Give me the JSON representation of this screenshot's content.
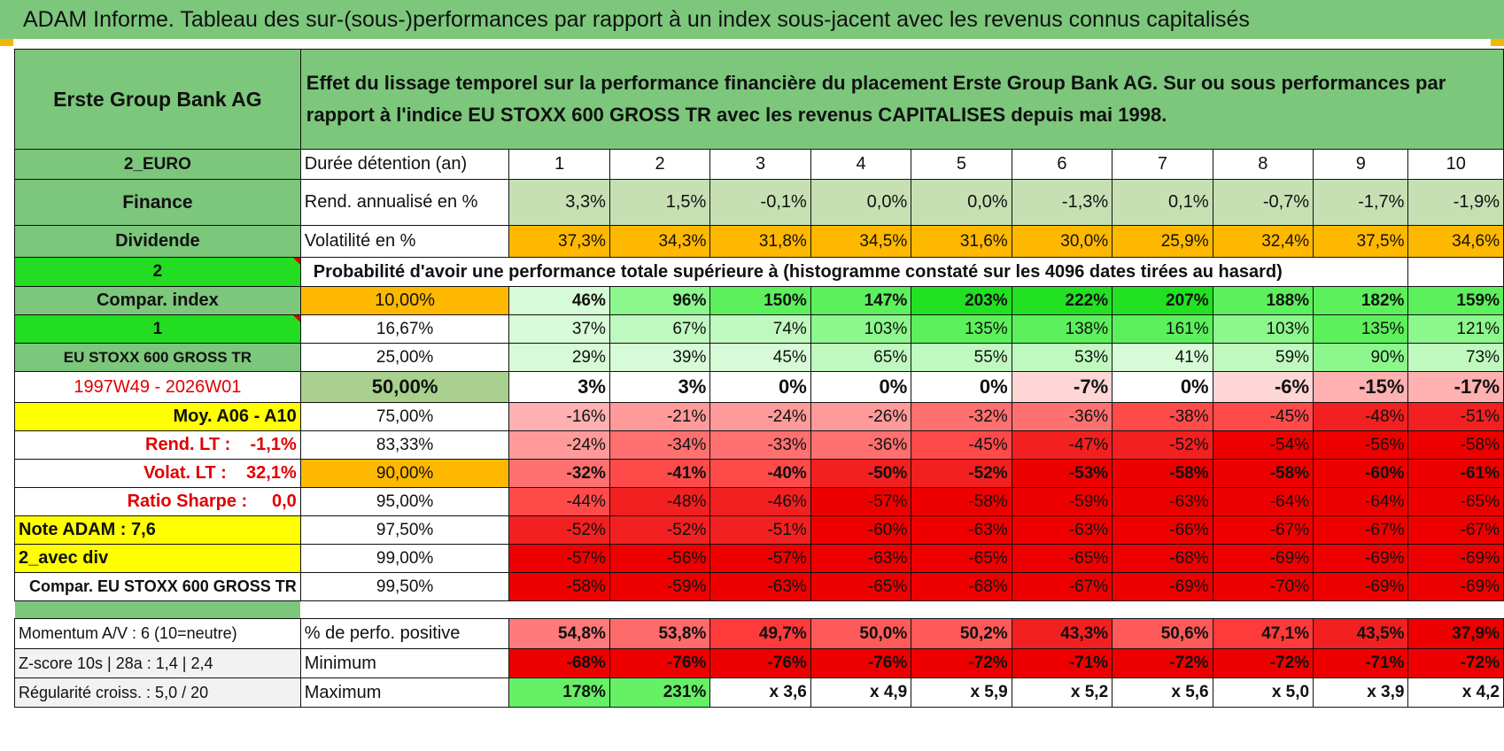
{
  "banner": "ADAM Informe. Tableau des sur-(sous-)performances par rapport à un index sous-jacent avec les revenus connus capitalisés",
  "header": {
    "company": "Erste Group Bank AG",
    "description": "Effet du lissage temporel sur la performance financière du placement Erste Group Bank AG. Sur ou sous performances par rapport à l'indice EU STOXX 600 GROSS TR avec les revenus CAPITALISES depuis mai 1998."
  },
  "side": {
    "currency": "2_EURO",
    "sector": "Finance",
    "dividend": "Dividende",
    "code2": "2",
    "compar_index": "Compar. index",
    "code1": "1",
    "index_name": "EU STOXX 600 GROSS TR",
    "period": "1997W49 - 2026W01",
    "moy": "Moy. A06 - A10",
    "rend_lt": "Rend. LT :    -1,1%",
    "volat_lt": "Volat. LT :    32,1%",
    "sharpe": "Ratio Sharpe :     0,0",
    "note": "Note ADAM : 7,6",
    "avec_div": "2_avec div",
    "compar_idx2": "Compar. EU STOXX 600 GROSS TR",
    "momentum": "Momentum A/V : 6 (10=neutre)",
    "zscore": "Z-score 10s | 28a : 1,4 | 2,4",
    "regularite": "Régularité croiss. : 5,0 / 20"
  },
  "labels": {
    "duree": "Durée détention (an)",
    "rend": "Rend. annualisé en %",
    "volat": "Volatilité en %",
    "proba": "Probabilité d'avoir une performance totale supérieure à (histogramme constaté sur les 4096 dates tirées au hasard)",
    "perfo_pos": "% de perfo. positive",
    "minimum": "Minimum",
    "maximum": "Maximum"
  },
  "years": [
    "1",
    "2",
    "3",
    "4",
    "5",
    "6",
    "7",
    "8",
    "9",
    "10"
  ],
  "rend": [
    "3,3%",
    "1,5%",
    "-0,1%",
    "0,0%",
    "0,0%",
    "-1,3%",
    "0,1%",
    "-0,7%",
    "-1,7%",
    "-1,9%"
  ],
  "volat": [
    "37,3%",
    "34,3%",
    "31,8%",
    "34,5%",
    "31,6%",
    "30,0%",
    "25,9%",
    "32,4%",
    "37,5%",
    "34,6%"
  ],
  "quantiles": [
    {
      "q": "10,00%",
      "v": [
        "46%",
        "96%",
        "150%",
        "147%",
        "203%",
        "222%",
        "207%",
        "188%",
        "182%",
        "159%"
      ]
    },
    {
      "q": "16,67%",
      "v": [
        "37%",
        "67%",
        "74%",
        "103%",
        "135%",
        "138%",
        "161%",
        "103%",
        "135%",
        "121%"
      ]
    },
    {
      "q": "25,00%",
      "v": [
        "29%",
        "39%",
        "45%",
        "65%",
        "55%",
        "53%",
        "41%",
        "59%",
        "90%",
        "73%"
      ]
    },
    {
      "q": "50,00%",
      "v": [
        "3%",
        "3%",
        "0%",
        "0%",
        "0%",
        "-7%",
        "0%",
        "-6%",
        "-15%",
        "-17%"
      ]
    },
    {
      "q": "75,00%",
      "v": [
        "-16%",
        "-21%",
        "-24%",
        "-26%",
        "-32%",
        "-36%",
        "-38%",
        "-45%",
        "-48%",
        "-51%"
      ]
    },
    {
      "q": "83,33%",
      "v": [
        "-24%",
        "-34%",
        "-33%",
        "-36%",
        "-45%",
        "-47%",
        "-52%",
        "-54%",
        "-56%",
        "-58%"
      ]
    },
    {
      "q": "90,00%",
      "v": [
        "-32%",
        "-41%",
        "-40%",
        "-50%",
        "-52%",
        "-53%",
        "-58%",
        "-58%",
        "-60%",
        "-61%"
      ]
    },
    {
      "q": "95,00%",
      "v": [
        "-44%",
        "-48%",
        "-46%",
        "-57%",
        "-58%",
        "-59%",
        "-63%",
        "-64%",
        "-64%",
        "-65%"
      ]
    },
    {
      "q": "97,50%",
      "v": [
        "-52%",
        "-52%",
        "-51%",
        "-60%",
        "-63%",
        "-63%",
        "-66%",
        "-67%",
        "-67%",
        "-67%"
      ]
    },
    {
      "q": "99,00%",
      "v": [
        "-57%",
        "-56%",
        "-57%",
        "-63%",
        "-65%",
        "-65%",
        "-68%",
        "-69%",
        "-69%",
        "-69%"
      ]
    },
    {
      "q": "99,50%",
      "v": [
        "-58%",
        "-59%",
        "-63%",
        "-65%",
        "-68%",
        "-67%",
        "-69%",
        "-70%",
        "-69%",
        "-69%"
      ]
    }
  ],
  "perfo_pos": [
    "54,8%",
    "53,8%",
    "49,7%",
    "50,0%",
    "50,2%",
    "43,3%",
    "50,6%",
    "47,1%",
    "43,5%",
    "37,9%"
  ],
  "minimum": [
    "-68%",
    "-76%",
    "-76%",
    "-76%",
    "-72%",
    "-71%",
    "-72%",
    "-72%",
    "-71%",
    "-72%"
  ],
  "maximum": [
    "178%",
    "231%",
    "x 3,6",
    "x 4,9",
    "x 5,9",
    "x 5,2",
    "x 5,6",
    "x 5,0",
    "x 3,9",
    "x 4,2"
  ],
  "colors": {
    "header_green": "#7cc77c",
    "bright_green": "#22dd22",
    "orange": "#ffb800",
    "yellow": "#ffff00",
    "red": "#ee0000",
    "rend_bg": "#c6e0b4"
  }
}
